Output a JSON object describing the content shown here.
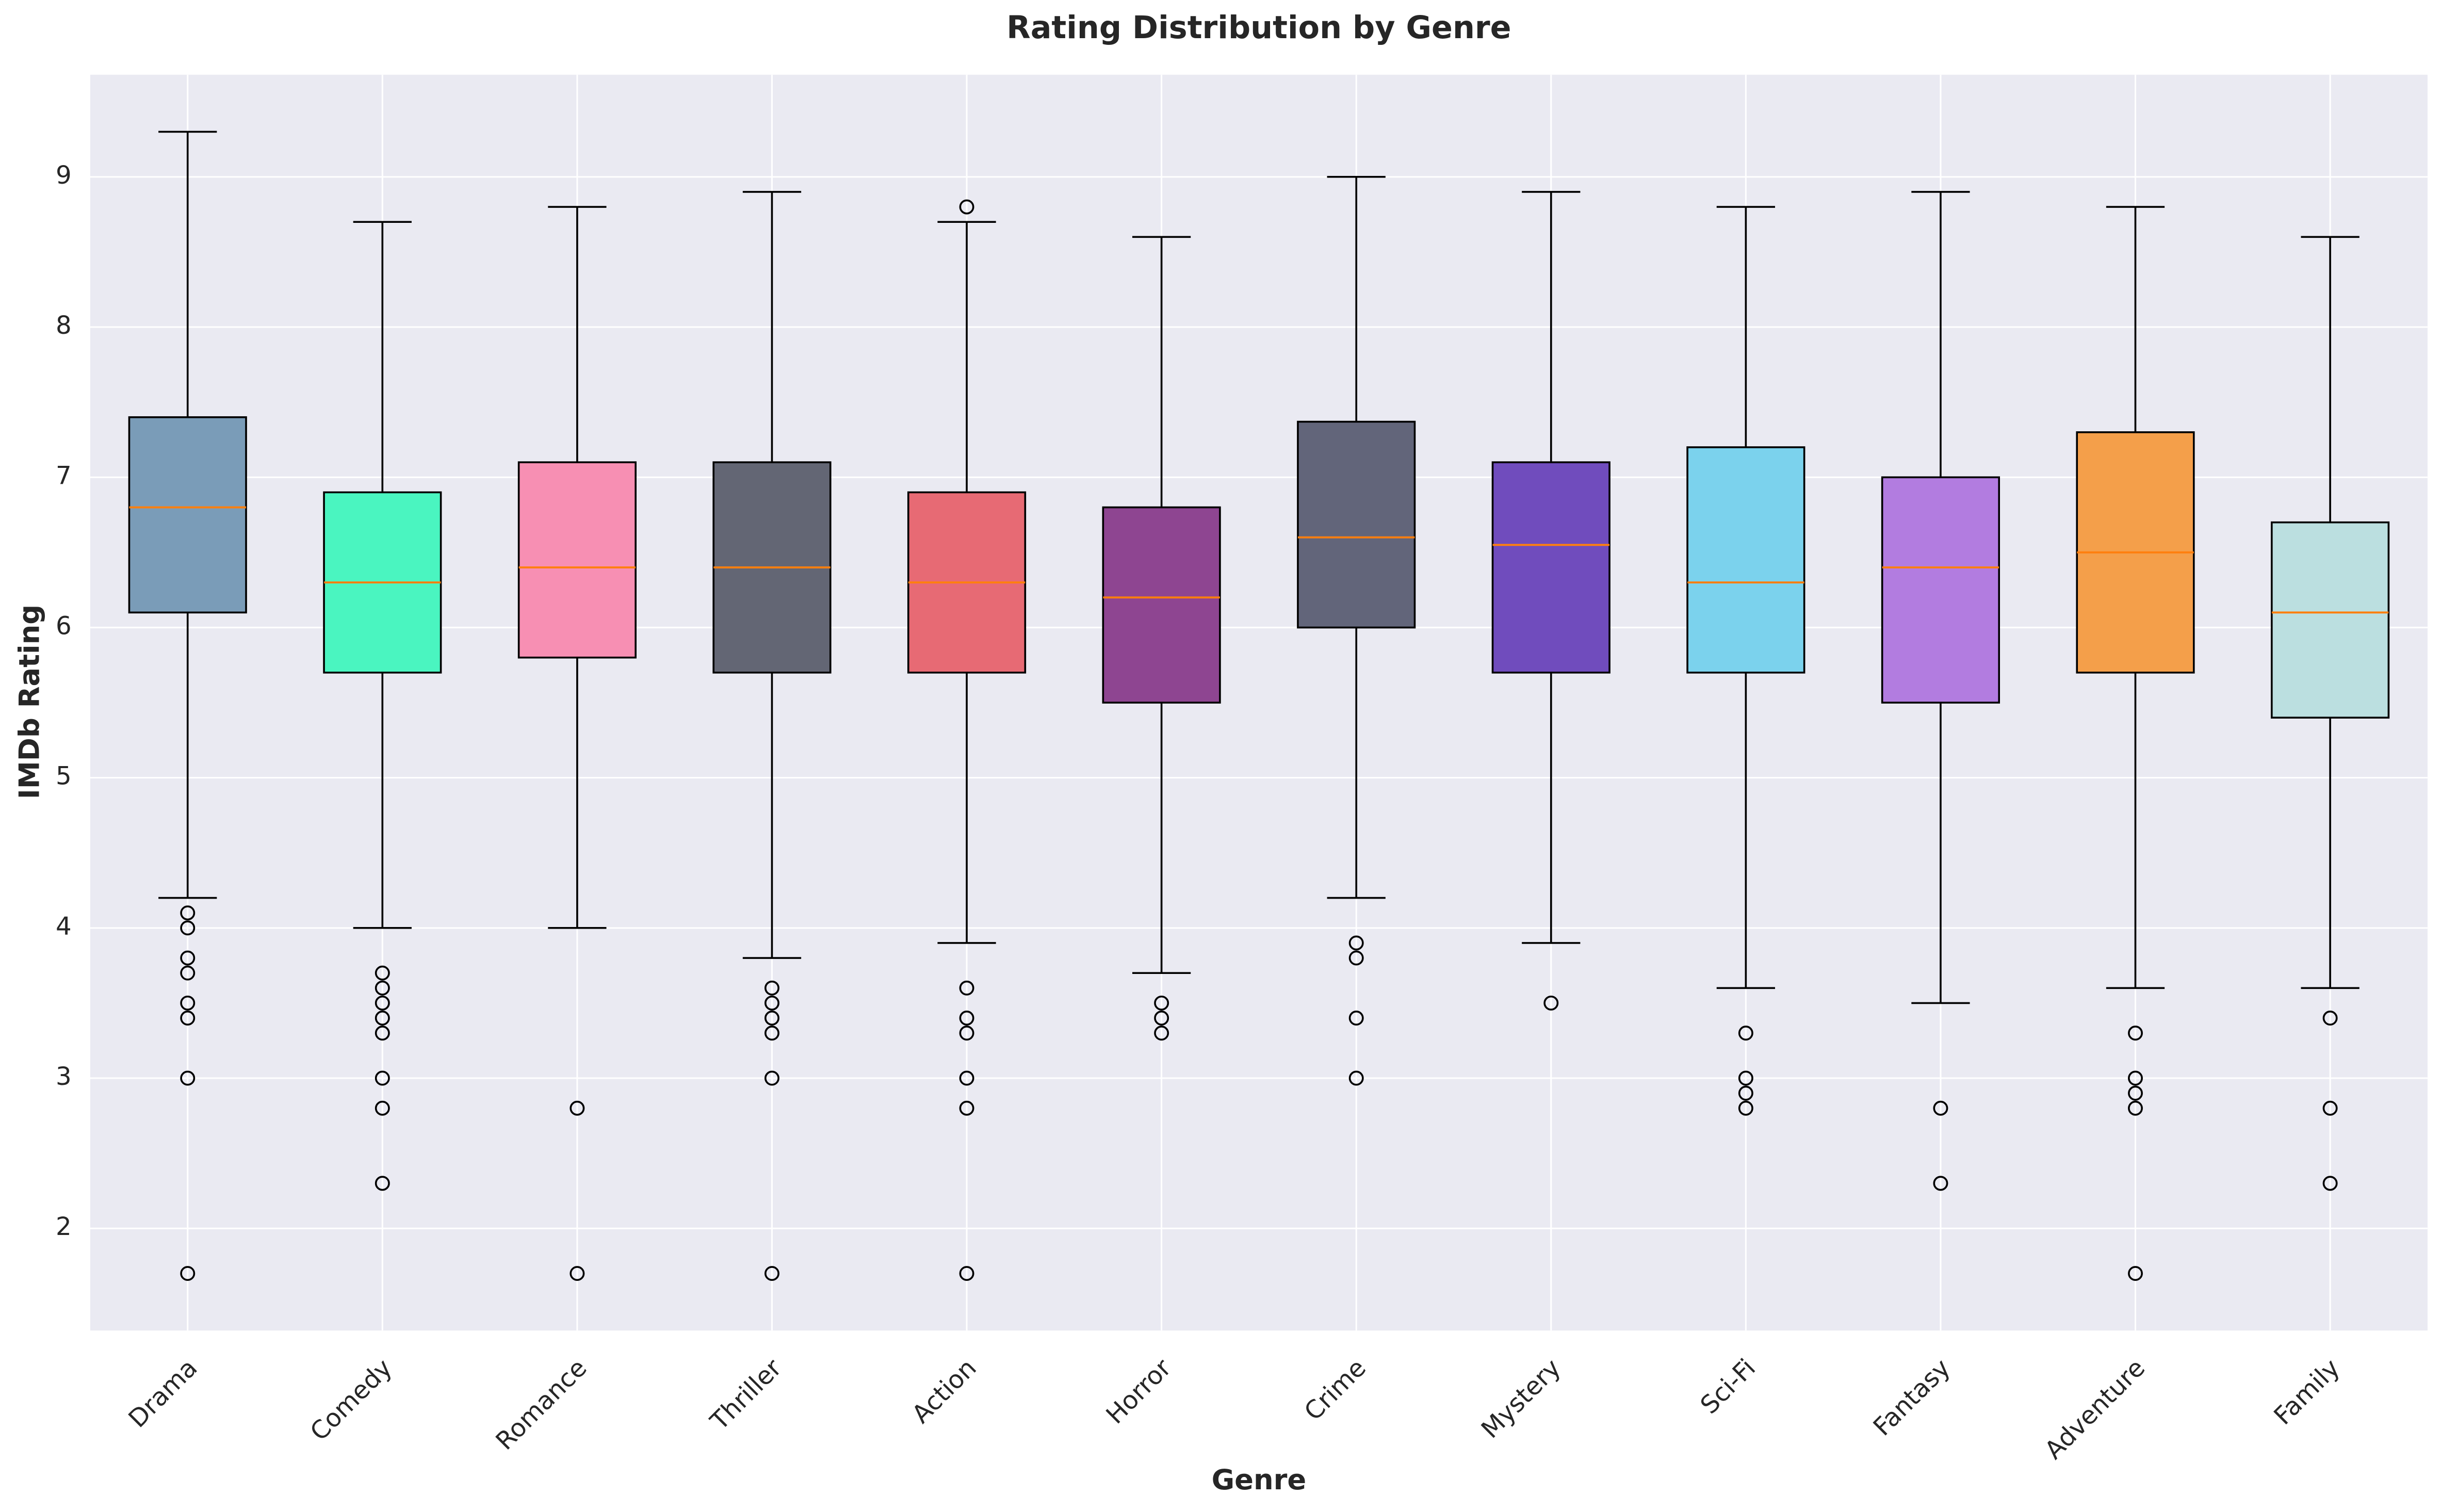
{
  "chart_data": {
    "type": "box",
    "title": "Rating Distribution by Genre",
    "x_label": "Genre",
    "y_label": "IMDb Rating",
    "categories": [
      "Drama",
      "Comedy",
      "Romance",
      "Thriller",
      "Action",
      "Horror",
      "Crime",
      "Mystery",
      "Sci-Fi",
      "Fantasy",
      "Adventure",
      "Family"
    ],
    "boxes": [
      {
        "low": 4.2,
        "q1": 6.1,
        "median": 6.8,
        "q3": 7.4,
        "high": 9.3,
        "outliers": [
          4.1,
          4.0,
          3.8,
          3.7,
          3.5,
          3.4,
          3.0,
          1.7
        ],
        "color": "#7a9cb8"
      },
      {
        "low": 4.0,
        "q1": 5.7,
        "median": 6.3,
        "q3": 6.9,
        "high": 8.7,
        "outliers": [
          3.7,
          3.6,
          3.5,
          3.4,
          3.3,
          3.0,
          2.8,
          2.3
        ],
        "color": "#4af5c0"
      },
      {
        "low": 4.0,
        "q1": 5.8,
        "median": 6.4,
        "q3": 7.1,
        "high": 8.8,
        "outliers": [
          2.8,
          1.7
        ],
        "color": "#f78fb3"
      },
      {
        "low": 3.8,
        "q1": 5.7,
        "median": 6.4,
        "q3": 7.1,
        "high": 8.9,
        "outliers": [
          3.6,
          3.5,
          3.4,
          3.3,
          3.0,
          1.7
        ],
        "color": "#636674"
      },
      {
        "low": 3.9,
        "q1": 5.7,
        "median": 6.3,
        "q3": 6.9,
        "high": 8.7,
        "outliers": [
          8.8,
          3.6,
          3.4,
          3.3,
          3.0,
          2.8,
          1.7
        ],
        "color": "#e76a74"
      },
      {
        "low": 3.7,
        "q1": 5.5,
        "median": 6.2,
        "q3": 6.8,
        "high": 8.6,
        "outliers": [
          3.5,
          3.4,
          3.3
        ],
        "color": "#8e4591"
      },
      {
        "low": 4.2,
        "q1": 6.0,
        "median": 6.6,
        "q3": 7.37,
        "high": 9.0,
        "outliers": [
          3.9,
          3.8,
          3.4,
          3.0
        ],
        "color": "#62657a"
      },
      {
        "low": 3.9,
        "q1": 5.7,
        "median": 6.55,
        "q3": 7.1,
        "high": 8.9,
        "outliers": [
          3.5
        ],
        "color": "#704cbd"
      },
      {
        "low": 3.6,
        "q1": 5.7,
        "median": 6.3,
        "q3": 7.2,
        "high": 8.8,
        "outliers": [
          3.3,
          3.0,
          2.9,
          2.8
        ],
        "color": "#7bd2ed"
      },
      {
        "low": 3.5,
        "q1": 5.5,
        "median": 6.4,
        "q3": 7.0,
        "high": 8.9,
        "outliers": [
          2.8,
          2.3
        ],
        "color": "#b27ce0"
      },
      {
        "low": 3.6,
        "q1": 5.7,
        "median": 6.5,
        "q3": 7.3,
        "high": 8.8,
        "outliers": [
          3.3,
          3.0,
          2.9,
          2.8,
          1.7
        ],
        "color": "#f49f4a"
      },
      {
        "low": 3.6,
        "q1": 5.4,
        "median": 6.1,
        "q3": 6.7,
        "high": 8.6,
        "outliers": [
          3.4,
          2.8,
          2.3
        ],
        "color": "#bbdfe0"
      }
    ],
    "median_color": "#ff7f0e",
    "ylim": [
      1.32,
      9.68
    ],
    "yticks": [
      2,
      3,
      4,
      5,
      6,
      7,
      8,
      9
    ],
    "grid": true
  }
}
